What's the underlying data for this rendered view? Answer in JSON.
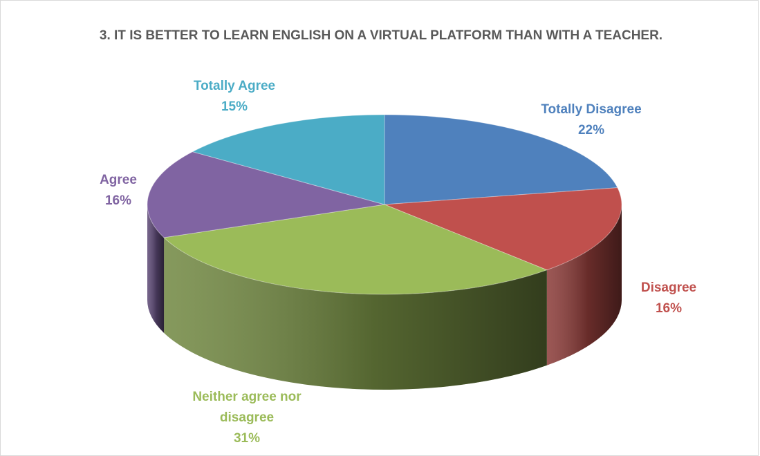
{
  "chart_data": {
    "type": "pie",
    "title": "3. IT IS BETTER TO LEARN ENGLISH ON A VIRTUAL PLATFORM THAN WITH A TEACHER.",
    "slices": [
      {
        "label": "Totally Disagree",
        "value": 22,
        "display": "22%",
        "color": "#4f81bd"
      },
      {
        "label": "Disagree",
        "value": 16,
        "display": "16%",
        "color": "#c0504d"
      },
      {
        "label": "Neither agree nor disagree",
        "value": 31,
        "display": "31%",
        "color": "#9bbb59"
      },
      {
        "label": "Agree",
        "value": 16,
        "display": "16%",
        "color": "#8064a2"
      },
      {
        "label": "Totally Agree",
        "value": 15,
        "display": "15%",
        "color": "#4bacc6"
      }
    ],
    "legend": "none",
    "style": "3d"
  }
}
